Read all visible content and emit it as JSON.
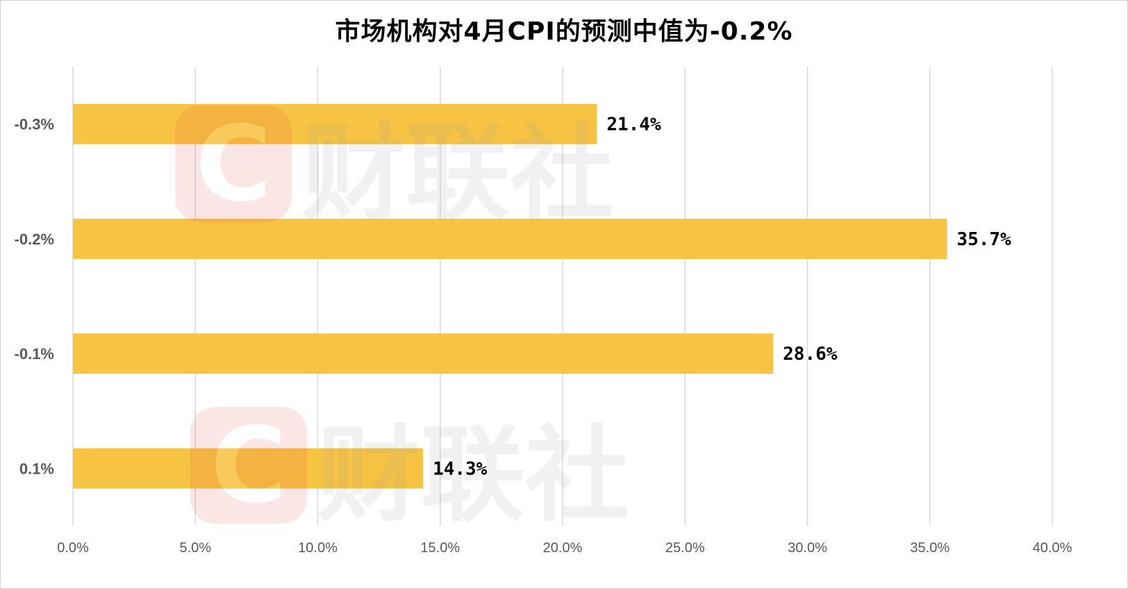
{
  "chart_data": {
    "type": "bar",
    "orientation": "horizontal",
    "title": "市场机构对4月CPI的预测中值为-0.2%",
    "categories": [
      "-0.3%",
      "-0.2%",
      "-0.1%",
      "0.1%"
    ],
    "values": [
      21.4,
      35.7,
      28.6,
      14.3
    ],
    "data_labels": [
      "21.4%",
      "35.7%",
      "28.6%",
      "14.3%"
    ],
    "xlim": [
      0,
      40
    ],
    "x_ticks": [
      0,
      5,
      10,
      15,
      20,
      25,
      30,
      35,
      40
    ],
    "x_tick_labels": [
      "0.0%",
      "5.0%",
      "10.0%",
      "15.0%",
      "20.0%",
      "25.0%",
      "30.0%",
      "35.0%",
      "40.0%"
    ],
    "xlabel": "",
    "ylabel": "",
    "grid": "vertical",
    "legend": "none",
    "bar_color": "#F6C343"
  },
  "watermark": {
    "text": "财联社",
    "logo_letter": "C",
    "logo_color": "#E8484A",
    "text_color": "#9A9A9A"
  }
}
